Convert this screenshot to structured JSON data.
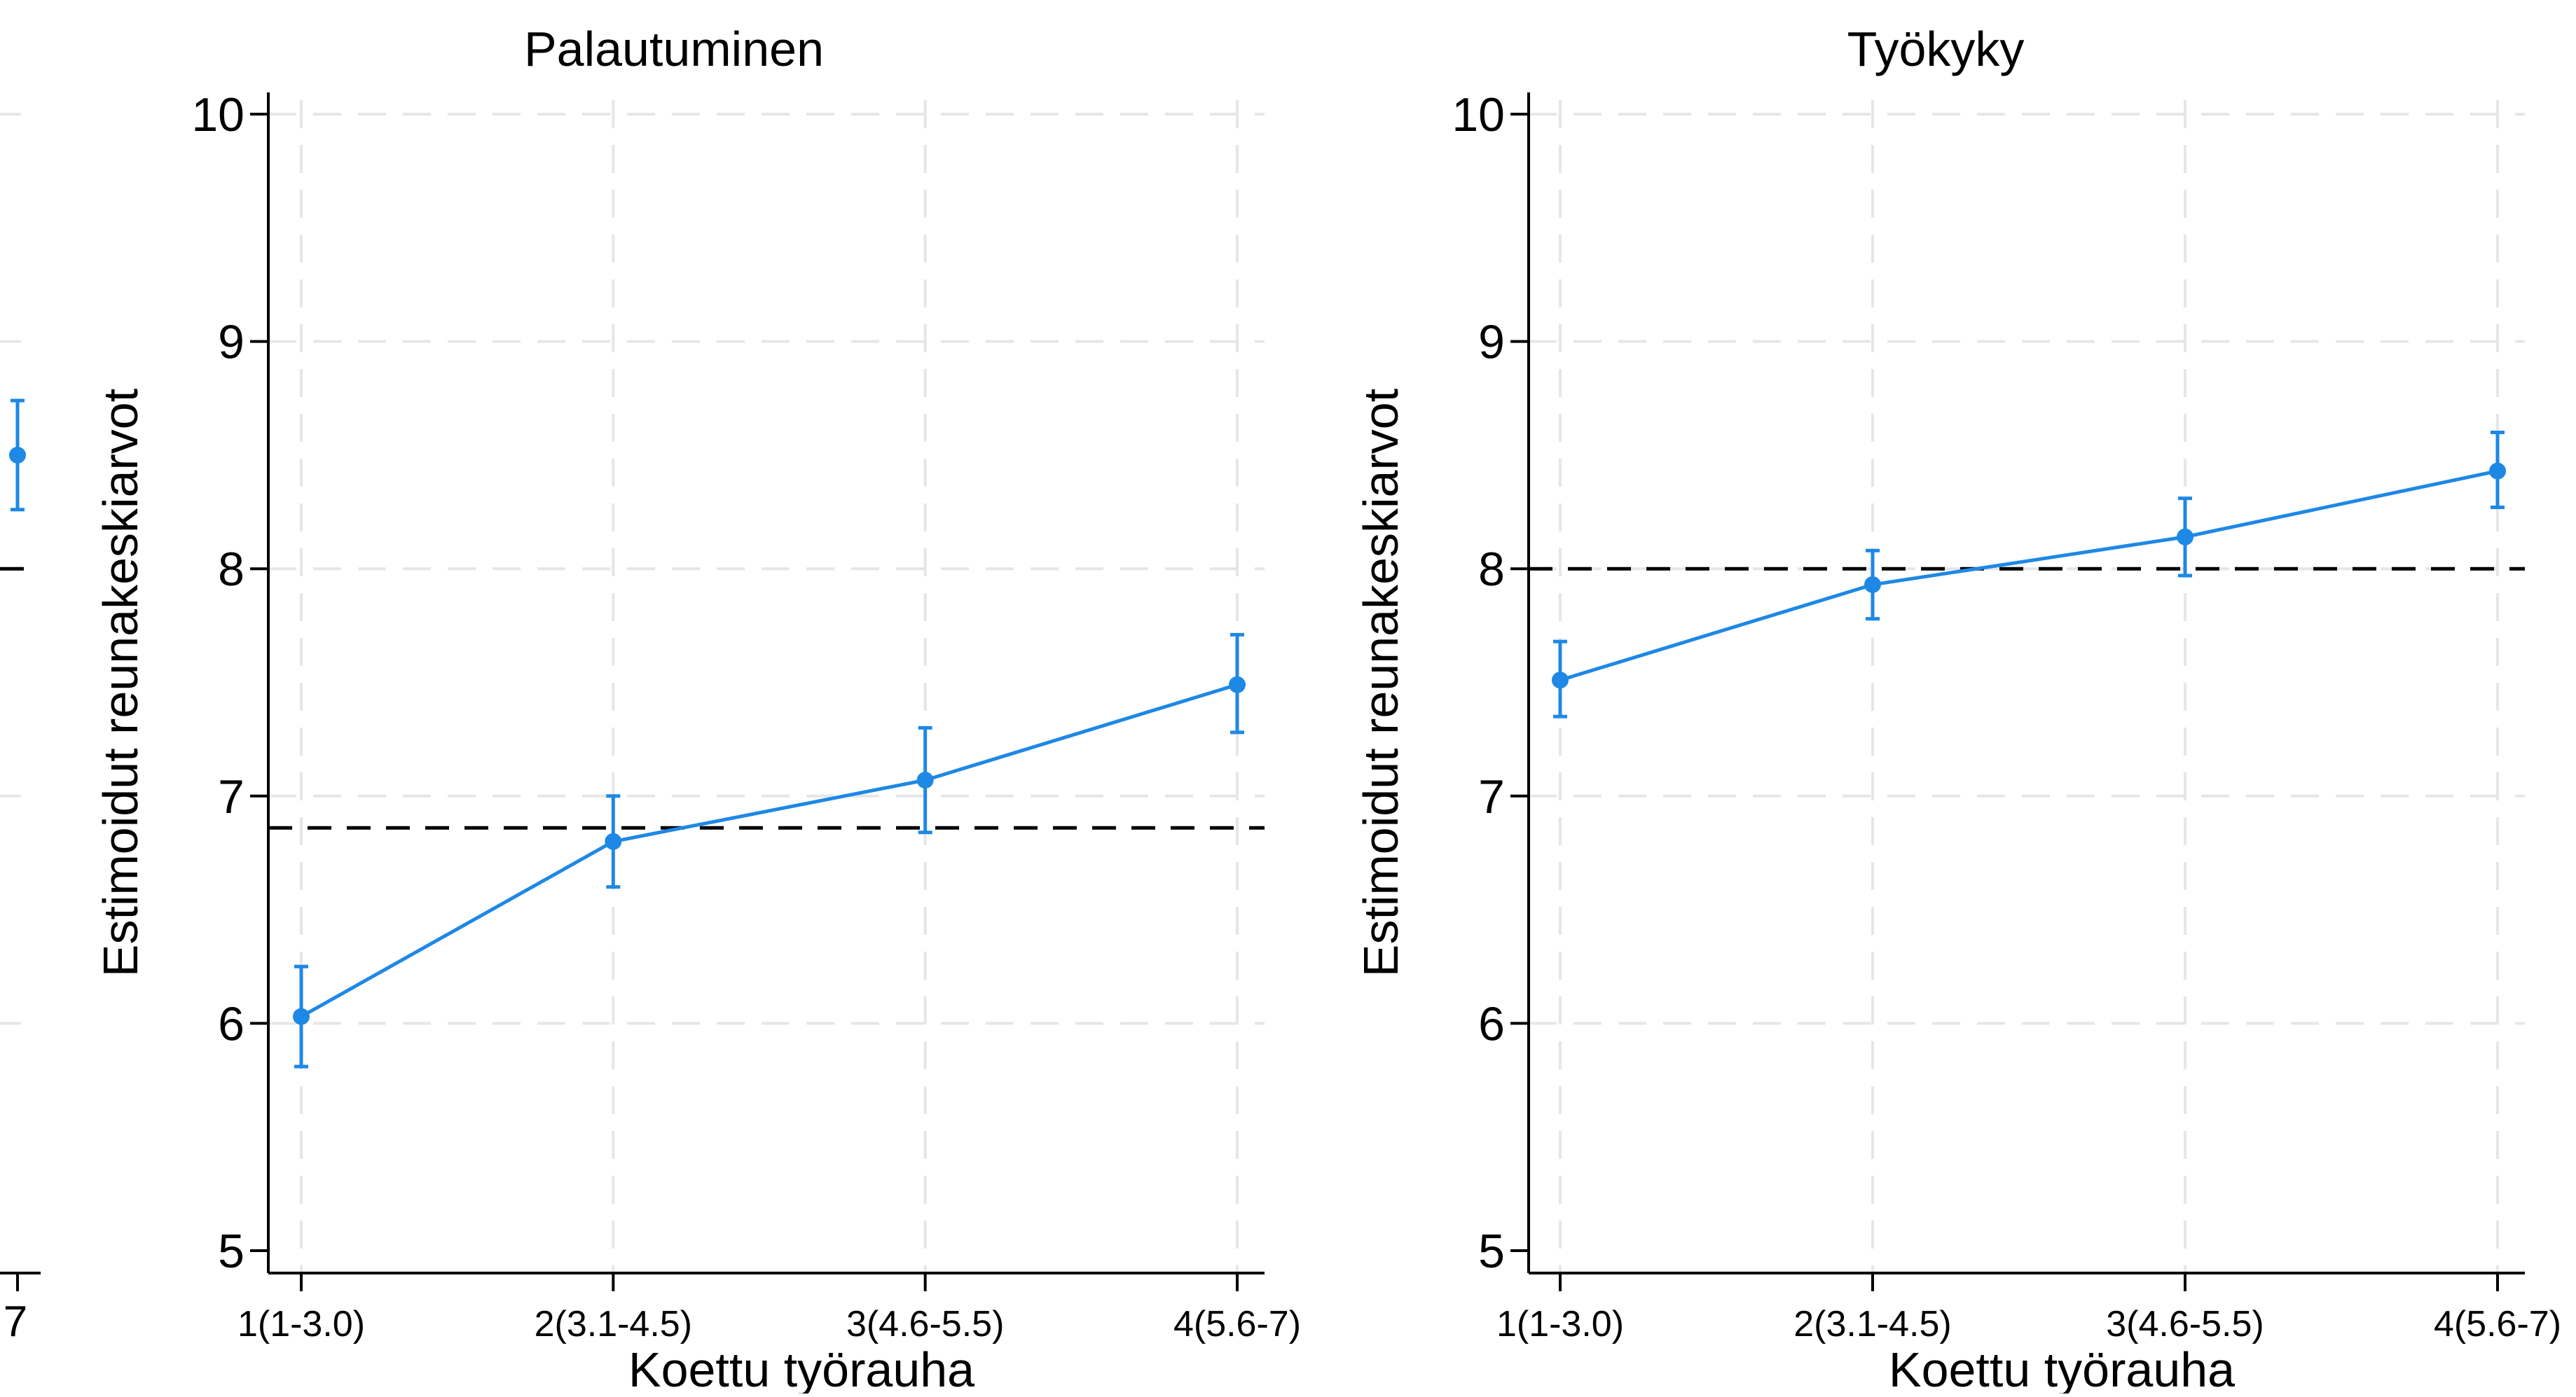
{
  "colors": {
    "series": "#1e88e5",
    "reference": "#000000",
    "grid": "#e6e6e6",
    "axis": "#000000"
  },
  "left_fragment": {
    "tick_label": "7",
    "point": 8.5,
    "ci": [
      8.26,
      8.74
    ],
    "reference": 8.0
  },
  "chart_data": [
    {
      "type": "line",
      "title": "Palautuminen",
      "xlabel": "Koettu työrauha",
      "ylabel": "Estimoidut reunakeskiarvot",
      "categories": [
        "1(1-3.0)",
        "2(3.1-4.5)",
        "3(4.6-5.5)",
        "4(5.6-7)"
      ],
      "series": [
        {
          "values": [
            6.03,
            6.8,
            7.07,
            7.49
          ],
          "ci_lower": [
            5.81,
            6.6,
            6.84,
            7.28
          ],
          "ci_upper": [
            6.25,
            7.0,
            7.3,
            7.71
          ]
        }
      ],
      "reference_line": 6.86,
      "ylim": [
        5,
        10
      ],
      "yticks": [
        5,
        6,
        7,
        8,
        9,
        10
      ],
      "grid": true
    },
    {
      "type": "line",
      "title": "Työkyky",
      "xlabel": "Koettu työrauha",
      "ylabel": "Estimoidut reunakeskiarvot",
      "categories": [
        "1(1-3.0)",
        "2(3.1-4.5)",
        "3(4.6-5.5)",
        "4(5.6-7)"
      ],
      "series": [
        {
          "values": [
            7.51,
            7.93,
            8.14,
            8.43
          ],
          "ci_lower": [
            7.35,
            7.78,
            7.97,
            8.27
          ],
          "ci_upper": [
            7.68,
            8.08,
            8.31,
            8.6
          ]
        }
      ],
      "reference_line": 8.0,
      "ylim": [
        5,
        10
      ],
      "yticks": [
        5,
        6,
        7,
        8,
        9,
        10
      ],
      "grid": true
    }
  ]
}
